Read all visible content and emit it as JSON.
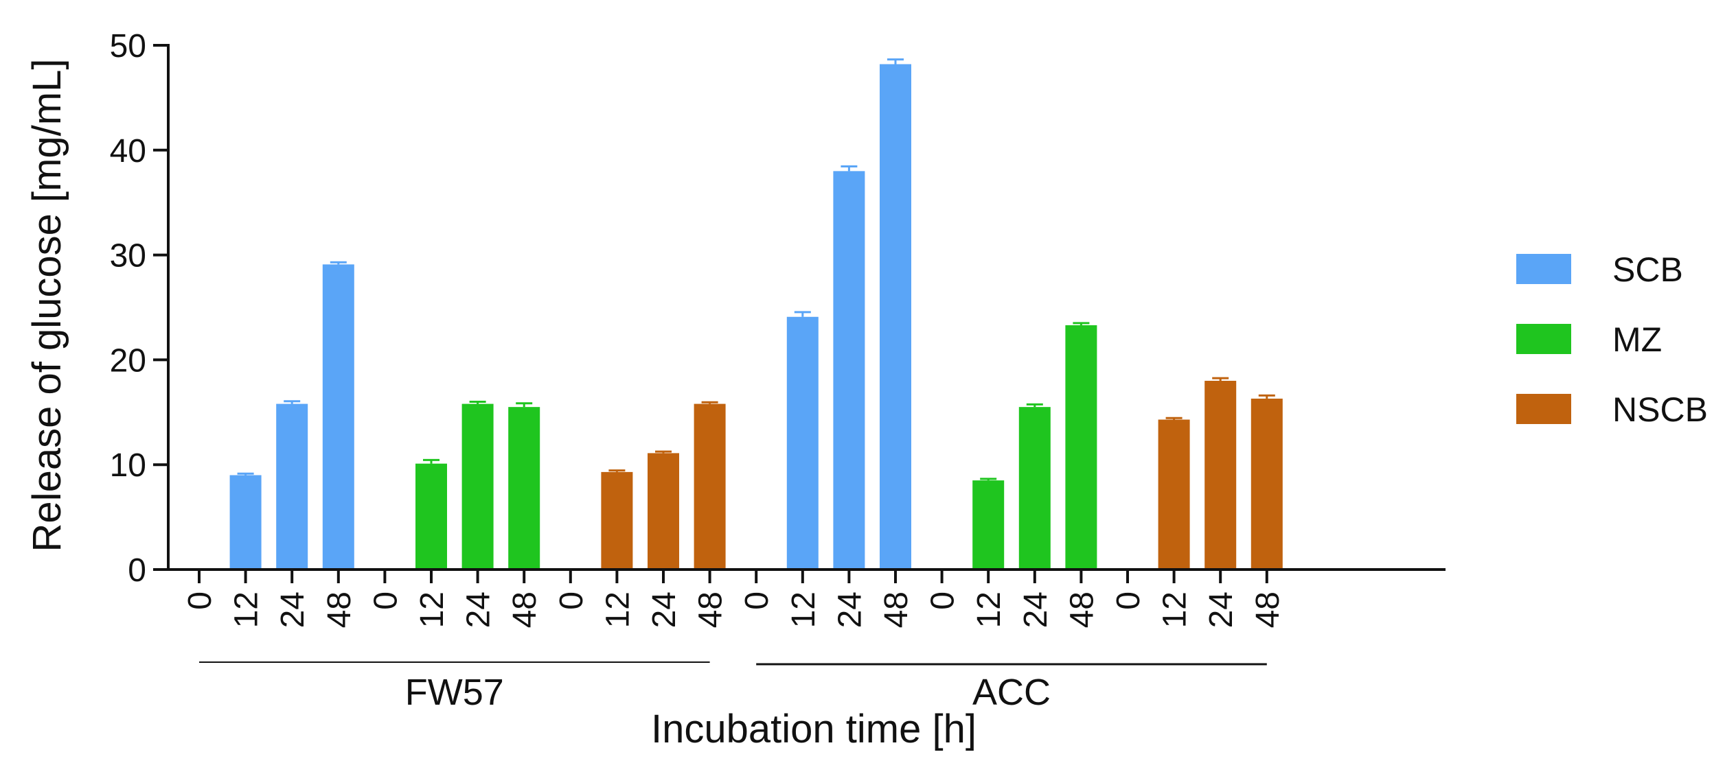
{
  "chart_data": {
    "type": "bar",
    "title": "",
    "xlabel": "Incubation time [h]",
    "ylabel": "Release of glucose [mg/mL]",
    "ylim": [
      0,
      50
    ],
    "yticks": [
      "0",
      "10",
      "20",
      "30",
      "40",
      "50"
    ],
    "ytick_values": [
      0,
      10,
      20,
      30,
      40,
      50
    ],
    "grid": false,
    "legend_position": "right",
    "series": [
      {
        "name": "SCB",
        "color": "#5aa5f7"
      },
      {
        "name": "MZ",
        "color": "#1fc51f"
      },
      {
        "name": "NSCB",
        "color": "#c0620e"
      }
    ],
    "groups": [
      {
        "name": "FW57",
        "subgroups": [
          {
            "series": "SCB",
            "times": [
              "0",
              "12",
              "24",
              "48"
            ],
            "values": [
              0,
              9.0,
              15.8,
              29.1
            ],
            "errors": [
              0,
              0.15,
              0.25,
              0.2
            ]
          },
          {
            "series": "MZ",
            "times": [
              "0",
              "12",
              "24",
              "48"
            ],
            "values": [
              0,
              10.1,
              15.8,
              15.5
            ],
            "errors": [
              0,
              0.35,
              0.2,
              0.35
            ]
          },
          {
            "series": "NSCB",
            "times": [
              "0",
              "12",
              "24",
              "48"
            ],
            "values": [
              0,
              9.3,
              11.1,
              15.8
            ],
            "errors": [
              0,
              0.15,
              0.15,
              0.15
            ]
          }
        ]
      },
      {
        "name": "ACC",
        "subgroups": [
          {
            "series": "SCB",
            "times": [
              "0",
              "12",
              "24",
              "48"
            ],
            "values": [
              0,
              24.1,
              38.0,
              48.2
            ],
            "errors": [
              0,
              0.45,
              0.45,
              0.45
            ]
          },
          {
            "series": "MZ",
            "times": [
              "0",
              "12",
              "24",
              "48"
            ],
            "values": [
              0,
              8.5,
              15.5,
              23.3
            ],
            "errors": [
              0,
              0.15,
              0.25,
              0.2
            ]
          },
          {
            "series": "NSCB",
            "times": [
              "0",
              "12",
              "24",
              "48"
            ],
            "values": [
              0,
              14.3,
              18.0,
              16.3
            ],
            "errors": [
              0,
              0.15,
              0.25,
              0.3
            ]
          }
        ]
      }
    ]
  }
}
